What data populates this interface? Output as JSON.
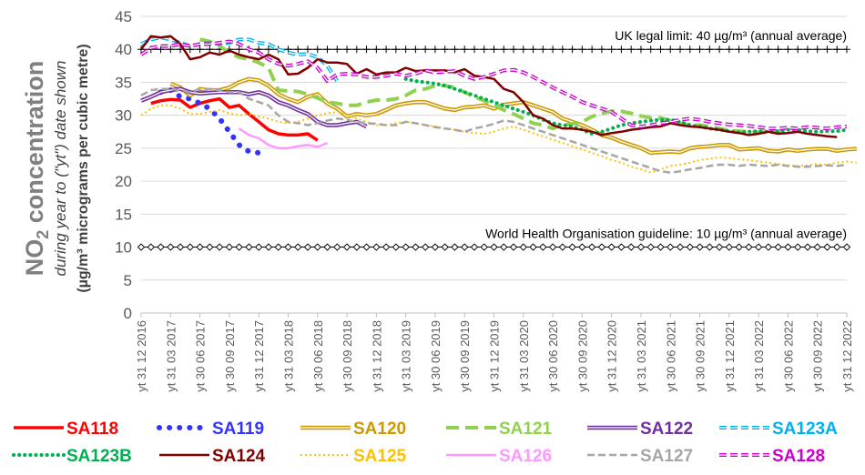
{
  "chart_data": {
    "type": "line",
    "ylabel": {
      "main_prefix": "NO",
      "main_sub": "2",
      "main_suffix": " concentration",
      "line2": "during year to (\"yt\") date shown",
      "line3": "(µg/m³ micrograms per cubic metre)"
    },
    "ylim": [
      0,
      45
    ],
    "yticks": [
      "0",
      "5",
      "10",
      "15",
      "20",
      "25",
      "30",
      "35",
      "40",
      "45"
    ],
    "x_categories": [
      "yt 31 12 2016",
      "yt 31 03 2017",
      "yt 30 06 2017",
      "yt 30 09 2017",
      "yt 31 12 2017",
      "yt 31 03 2018",
      "yt 30 06 2018",
      "yt 30 09 2018",
      "yt 31 12 2018",
      "yt 31 03 2019",
      "yt 30 06 2019",
      "yt 30 09 2019",
      "yt 31 12 2019",
      "yt 31 03 2020",
      "yt 30 06 2020",
      "yt 30 09 2020",
      "yt 31 12 2020",
      "yt 31 03 2021",
      "yt 30 06 2021",
      "yt 30 09 2021",
      "yt 31 12 2021",
      "yt 31 03 2022",
      "yt 30 06 2022",
      "yt 30 09 2022",
      "yt 31 12 2022"
    ],
    "x_months": 72,
    "reference_lines": [
      {
        "label": "UK legal limit:  40 µg/m³ (annual average)",
        "value": 40,
        "marker": "plus"
      },
      {
        "label": "World Health Organisation guideline:  10 µg/m³ (annual average)",
        "value": 10,
        "marker": "diamond"
      }
    ],
    "grid": true,
    "legend_position": "bottom",
    "series": [
      {
        "name": "SA118",
        "color": "#FF0000",
        "style": "solid-thick",
        "start": 1,
        "values": [
          31.8,
          32.2,
          32.4,
          32.3,
          31.2,
          31.8,
          32.2,
          32.5,
          31.2,
          31.5,
          30.2,
          29.0,
          27.8,
          27.2,
          27.0,
          27.0,
          27.2,
          26.2
        ]
      },
      {
        "name": "SA119",
        "color": "#3333FF",
        "style": "dots-big",
        "start": 2,
        "values": [
          33.5,
          33.8,
          32.8,
          32.5,
          31.8,
          31.0,
          29.5,
          27.5,
          25.5,
          24.5,
          24.3
        ]
      },
      {
        "name": "SA120",
        "color": "#CC9900",
        "style": "double",
        "start": 3,
        "values": [
          34.8,
          34.2,
          33.0,
          34.0,
          33.8,
          33.8,
          34.2,
          35.0,
          35.5,
          35.3,
          34.5,
          33.2,
          32.5,
          32.0,
          32.8,
          33.2,
          31.8,
          31.0,
          29.8,
          30.2,
          30.0,
          30.2,
          30.8,
          31.5,
          31.8,
          32.0,
          32.0,
          31.5,
          31.0,
          30.8,
          31.2,
          31.3,
          31.5,
          31.0,
          31.6,
          31.8,
          32.0,
          31.5,
          31.0,
          30.5,
          29.5,
          29.0,
          28.5,
          27.8,
          27.0,
          26.6,
          26.0,
          25.5,
          25.0,
          24.3,
          24.4,
          24.5,
          24.4,
          25.0,
          25.2,
          25.3,
          25.5,
          25.5,
          24.8,
          24.9,
          25.0,
          24.6,
          24.5,
          24.8,
          24.6,
          24.8,
          24.9,
          24.9,
          24.6,
          24.8,
          24.9
        ]
      },
      {
        "name": "SA121",
        "color": "#92D050",
        "style": "dash-thick",
        "start": 6,
        "values": [
          41.5,
          41.2,
          40.5,
          39.5,
          38.8,
          38.5,
          38.0,
          37.2,
          33.8,
          33.7,
          33.6,
          33.2,
          32.6,
          32.0,
          31.8,
          31.5,
          31.5,
          32.0,
          32.3,
          32.3,
          32.5,
          33.0,
          33.8,
          34.0,
          34.5,
          34.5,
          34.2,
          33.5,
          32.8,
          32.2,
          31.5,
          30.8,
          30.2,
          29.5,
          28.8,
          28.5,
          28.0,
          28.5,
          28.7,
          29.0,
          29.8,
          30.3,
          30.6,
          30.6,
          30.3,
          29.9,
          29.6,
          29.6,
          29.2,
          28.8,
          28.5,
          28.5,
          28.3,
          28.0,
          27.7,
          27.6,
          27.5,
          27.4,
          27.4,
          27.5,
          27.8
        ]
      },
      {
        "name": "SA122",
        "color": "#7030A0",
        "style": "double",
        "start": 0,
        "values": [
          32.2,
          32.8,
          33.5,
          33.8,
          34.0,
          33.5,
          33.3,
          33.4,
          33.5,
          33.5,
          33.5,
          33.2,
          33.5,
          33.0,
          32.0,
          31.5,
          30.8,
          30.2,
          29.0,
          28.5,
          28.5,
          28.8,
          29.0,
          28.3
        ]
      },
      {
        "name": "SA123A",
        "color": "#00B0F0",
        "style": "dash-double",
        "start": 0,
        "values": [
          40.8,
          41.5,
          41.8,
          41.5,
          41.0,
          40.5,
          40.8,
          41.0,
          40.8,
          41.0,
          41.5,
          41.5,
          41.0,
          40.8,
          40.0,
          39.5,
          39.2,
          39.3,
          38.8,
          37.5,
          35.2
        ]
      },
      {
        "name": "SA123B",
        "color": "#00B050",
        "style": "dots-small",
        "start": 27,
        "values": [
          35.5,
          35.2,
          35.0,
          34.8,
          34.5,
          34.0,
          33.5,
          33.0,
          32.5,
          32.0,
          31.5,
          31.0,
          30.5,
          30.0,
          29.3,
          28.8,
          28.5,
          28.3,
          27.8,
          27.2,
          27.5,
          28.0,
          28.5,
          28.8,
          29.0,
          29.2,
          29.3,
          29.3,
          29.0,
          28.5,
          28.3,
          28.0,
          27.8,
          27.6,
          27.4,
          27.5,
          27.6,
          27.5,
          27.6,
          27.8,
          27.8,
          27.6,
          27.5,
          27.6,
          27.6,
          27.8
        ]
      },
      {
        "name": "SA124",
        "color": "#800000",
        "style": "solid",
        "start": 0,
        "values": [
          40.0,
          42.0,
          41.8,
          42.0,
          40.8,
          38.5,
          38.8,
          39.5,
          39.2,
          39.8,
          39.2,
          38.8,
          38.5,
          39.2,
          38.5,
          36.2,
          36.3,
          37.2,
          38.5,
          38.0,
          38.0,
          37.8,
          36.3,
          37.0,
          36.2,
          36.5,
          36.5,
          37.2,
          36.7,
          36.8,
          36.8,
          36.8,
          36.5,
          37.0,
          36.0,
          35.8,
          35.5,
          34.0,
          33.5,
          32.0,
          30.0,
          29.5,
          28.5,
          28.0,
          28.0,
          27.8,
          27.5,
          27.0,
          27.3,
          27.5,
          27.8,
          28.0,
          28.2,
          28.3,
          28.8,
          28.5,
          28.3,
          28.2,
          28.0,
          27.8,
          27.5,
          27.3,
          27.0,
          27.2,
          27.5,
          27.2,
          27.3,
          27.5,
          27.2,
          27.0,
          26.8,
          26.7
        ]
      },
      {
        "name": "SA125",
        "color": "#FFC000",
        "style": "dots-tiny",
        "start": 0,
        "values": [
          30.0,
          31.0,
          31.5,
          31.5,
          31.0,
          30.2,
          30.2,
          30.5,
          30.8,
          30.3,
          30.0,
          30.2,
          29.8,
          29.5,
          29.0,
          28.8,
          29.0,
          29.5,
          30.0,
          30.3,
          30.5,
          30.2,
          29.5,
          29.0,
          28.5,
          28.5,
          28.8,
          29.0,
          28.8,
          28.5,
          28.3,
          28.0,
          27.8,
          27.5,
          27.3,
          27.2,
          27.5,
          28.0,
          28.3,
          27.8,
          27.3,
          26.8,
          26.3,
          25.8,
          25.3,
          24.8,
          24.3,
          23.8,
          23.2,
          22.8,
          22.2,
          21.8,
          21.3,
          21.8,
          22.3,
          22.5,
          22.8,
          23.2,
          23.4,
          23.6,
          23.5,
          23.3,
          23.2,
          23.0,
          22.8,
          22.6,
          22.4,
          22.3,
          22.4,
          22.6,
          22.5,
          22.8,
          23.0,
          22.8
        ]
      },
      {
        "name": "SA126",
        "color": "#FF99FF",
        "style": "solid",
        "start": 10,
        "values": [
          28.0,
          27.0,
          26.5,
          25.5,
          25.0,
          25.0,
          25.3,
          25.5,
          25.2,
          25.8
        ]
      },
      {
        "name": "SA127",
        "color": "#A6A6A6",
        "style": "dash",
        "start": 0,
        "values": [
          33.0,
          33.8,
          34.0,
          34.0,
          33.8,
          33.5,
          34.0,
          34.0,
          33.8,
          33.5,
          33.5,
          32.5,
          32.0,
          31.5,
          30.0,
          29.0,
          28.8,
          28.5,
          28.8,
          29.2,
          29.5,
          29.3,
          29.0,
          28.8,
          28.7,
          28.5,
          28.5,
          29.0,
          28.8,
          28.5,
          28.2,
          28.0,
          27.8,
          27.5,
          28.0,
          28.3,
          28.7,
          29.2,
          29.0,
          28.5,
          28.0,
          27.5,
          27.0,
          26.5,
          26.0,
          25.5,
          25.0,
          24.5,
          24.0,
          23.5,
          23.0,
          22.5,
          22.0,
          21.5,
          21.3,
          21.5,
          21.8,
          22.0,
          22.3,
          22.5,
          22.5,
          22.3,
          22.5,
          22.4,
          22.3,
          22.5,
          22.3,
          22.2,
          22.2,
          22.3,
          22.4,
          22.3,
          22.5
        ]
      },
      {
        "name": "SA128",
        "color": "#CC00CC",
        "style": "dash-double",
        "start": 0,
        "values": [
          39.2,
          40.2,
          40.5,
          40.5,
          40.8,
          40.5,
          40.8,
          40.8,
          41.0,
          41.2,
          40.8,
          40.0,
          39.5,
          38.5,
          37.8,
          37.5,
          37.8,
          38.2,
          37.2,
          35.2,
          36.2,
          36.3,
          36.2,
          35.8,
          35.8,
          36.0,
          36.3,
          36.0,
          36.3,
          36.8,
          36.5,
          36.6,
          36.7,
          36.0,
          35.5,
          35.8,
          36.3,
          36.8,
          36.9,
          36.5,
          35.8,
          35.0,
          34.2,
          33.5,
          32.8,
          32.0,
          31.5,
          31.0,
          30.5,
          29.5,
          28.5,
          28.3,
          28.5,
          28.8,
          29.0,
          29.3,
          29.5,
          29.3,
          29.0,
          28.8,
          28.6,
          28.5,
          28.4,
          28.2,
          28.0,
          28.0,
          28.1,
          28.0,
          28.2,
          28.1,
          28.0,
          28.2,
          28.3
        ]
      }
    ]
  }
}
